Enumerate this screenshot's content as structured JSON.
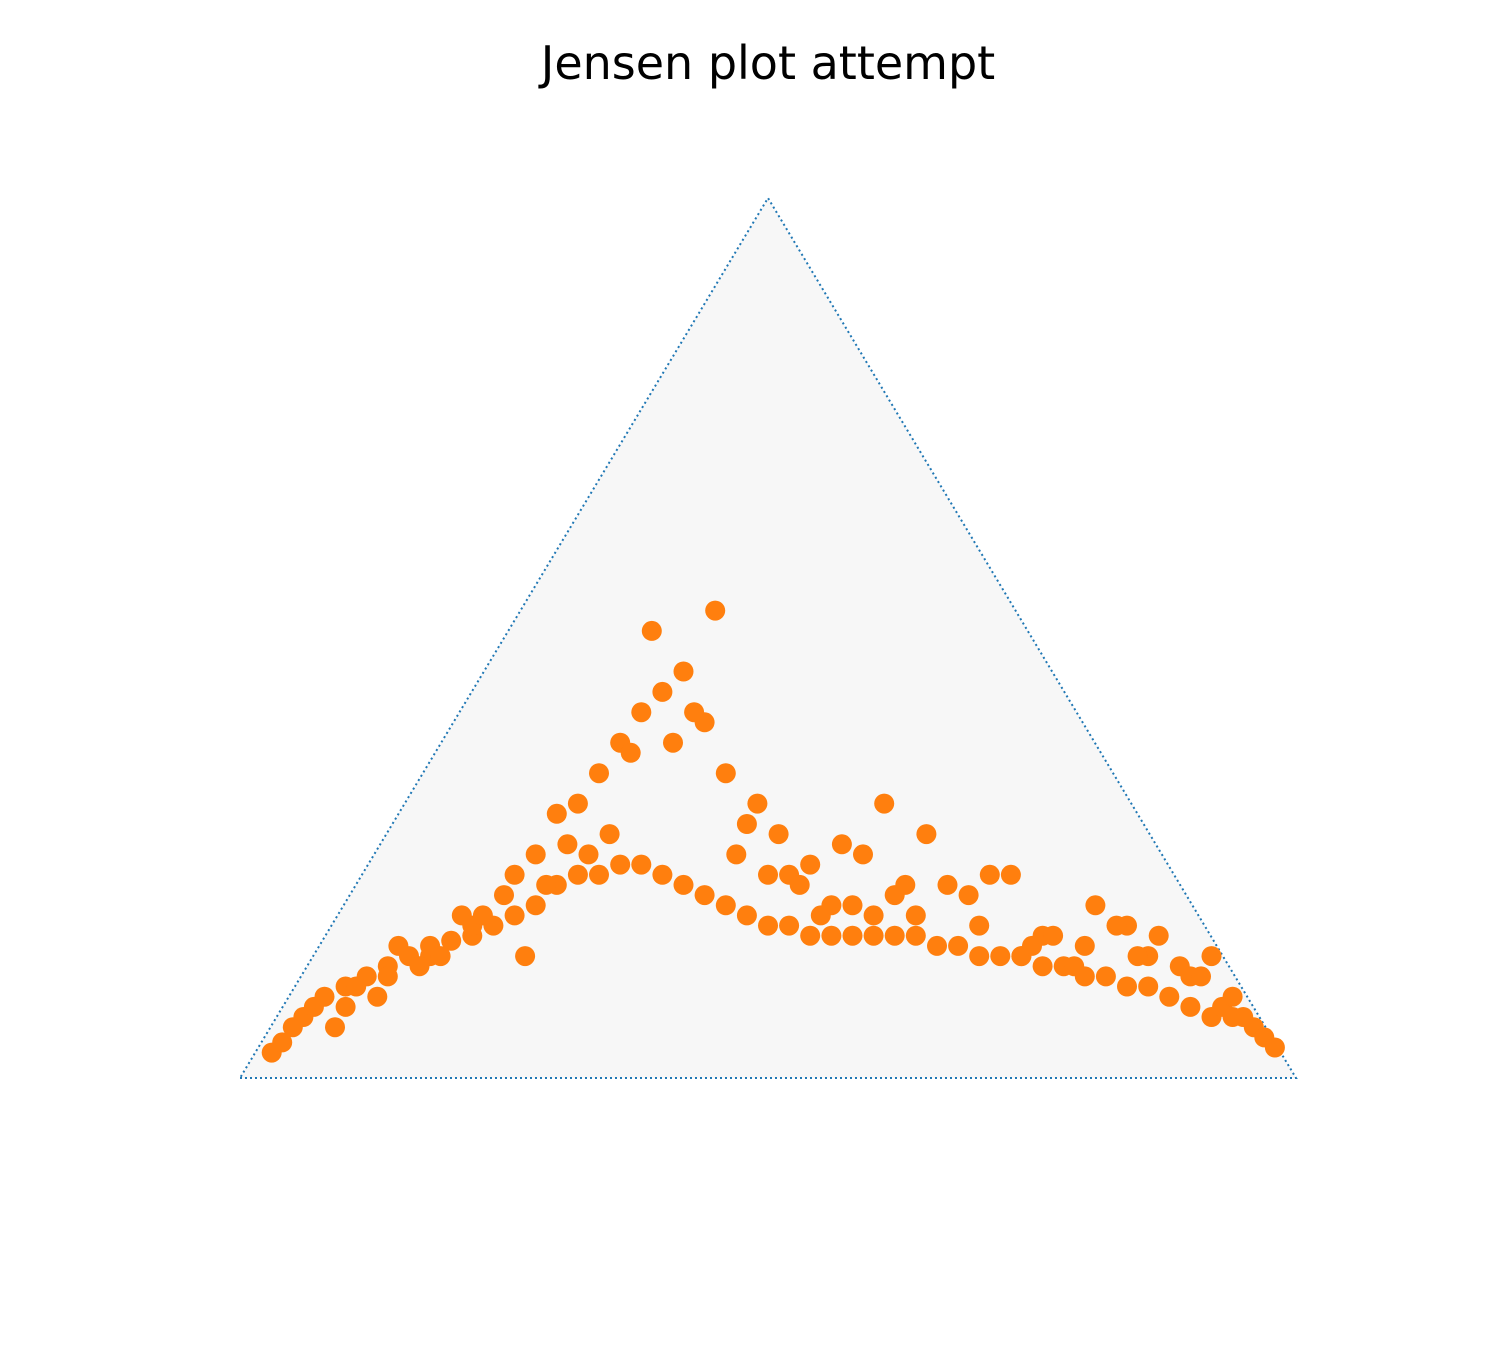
{
  "chart_data": {
    "type": "scatter",
    "subtype": "ternary",
    "title": "Jensen plot attempt",
    "xlabel": "",
    "ylabel": "",
    "axis_ranges": {
      "a": [
        0,
        1
      ],
      "b": [
        0,
        1
      ],
      "c": [
        0,
        1
      ]
    },
    "grid": false,
    "legend": "none",
    "colors": {
      "points": "#ff7f0e",
      "frame": "#1f77b4",
      "background": "#f7f7f7"
    },
    "series": [
      {
        "points_note": "x = horizontal ternary coordinate (0 = left corner, 1 = right corner), y = vertical ternary coordinate (0 = base, 0.866 = apex)",
        "x": [
          0.03,
          0.04,
          0.05,
          0.06,
          0.07,
          0.08,
          0.1,
          0.12,
          0.14,
          0.16,
          0.18,
          0.2,
          0.22,
          0.24,
          0.26,
          0.28,
          0.3,
          0.32,
          0.34,
          0.36,
          0.38,
          0.4,
          0.42,
          0.44,
          0.46,
          0.48,
          0.5,
          0.52,
          0.54,
          0.56,
          0.58,
          0.6,
          0.62,
          0.64,
          0.66,
          0.68,
          0.7,
          0.72,
          0.74,
          0.76,
          0.78,
          0.8,
          0.82,
          0.84,
          0.86,
          0.88,
          0.9,
          0.92,
          0.94,
          0.96,
          0.97,
          0.98,
          0.3,
          0.34,
          0.36,
          0.38,
          0.4,
          0.42,
          0.44,
          0.46,
          0.48,
          0.52,
          0.56,
          0.6,
          0.64,
          0.7,
          0.76,
          0.8,
          0.86,
          0.9,
          0.1,
          0.14,
          0.18,
          0.22,
          0.26,
          0.28,
          0.32,
          0.37,
          0.41,
          0.39,
          0.43,
          0.45,
          0.35,
          0.31,
          0.29,
          0.5,
          0.54,
          0.58,
          0.62,
          0.67,
          0.74,
          0.79,
          0.84,
          0.87,
          0.92,
          0.95,
          0.15,
          0.25,
          0.33,
          0.47,
          0.53,
          0.57,
          0.63,
          0.71,
          0.73,
          0.81,
          0.83,
          0.93,
          0.11,
          0.13,
          0.19,
          0.21,
          0.27,
          0.09,
          0.17,
          0.23,
          0.49,
          0.51,
          0.55,
          0.59,
          0.61,
          0.65,
          0.69,
          0.75,
          0.77,
          0.85,
          0.89,
          0.91,
          0.94
        ],
        "y": [
          0.025,
          0.035,
          0.05,
          0.06,
          0.07,
          0.08,
          0.09,
          0.1,
          0.11,
          0.12,
          0.13,
          0.135,
          0.14,
          0.15,
          0.16,
          0.17,
          0.19,
          0.2,
          0.2,
          0.21,
          0.21,
          0.2,
          0.19,
          0.18,
          0.17,
          0.16,
          0.15,
          0.15,
          0.14,
          0.14,
          0.14,
          0.14,
          0.14,
          0.14,
          0.13,
          0.13,
          0.12,
          0.12,
          0.12,
          0.11,
          0.11,
          0.1,
          0.1,
          0.09,
          0.09,
          0.08,
          0.07,
          0.06,
          0.06,
          0.05,
          0.04,
          0.03,
          0.26,
          0.3,
          0.33,
          0.36,
          0.38,
          0.4,
          0.35,
          0.3,
          0.25,
          0.2,
          0.17,
          0.16,
          0.16,
          0.15,
          0.14,
          0.13,
          0.12,
          0.1,
          0.07,
          0.1,
          0.12,
          0.15,
          0.2,
          0.22,
          0.27,
          0.32,
          0.33,
          0.44,
          0.36,
          0.46,
          0.24,
          0.23,
          0.19,
          0.2,
          0.21,
          0.17,
          0.18,
          0.19,
          0.12,
          0.11,
          0.15,
          0.14,
          0.12,
          0.06,
          0.13,
          0.18,
          0.22,
          0.22,
          0.19,
          0.23,
          0.19,
          0.2,
          0.2,
          0.17,
          0.15,
          0.07,
          0.09,
          0.08,
          0.12,
          0.16,
          0.12,
          0.05,
          0.11,
          0.16,
          0.27,
          0.24,
          0.16,
          0.22,
          0.27,
          0.24,
          0.18,
          0.13,
          0.14,
          0.12,
          0.11,
          0.1,
          0.08
        ]
      }
    ]
  }
}
